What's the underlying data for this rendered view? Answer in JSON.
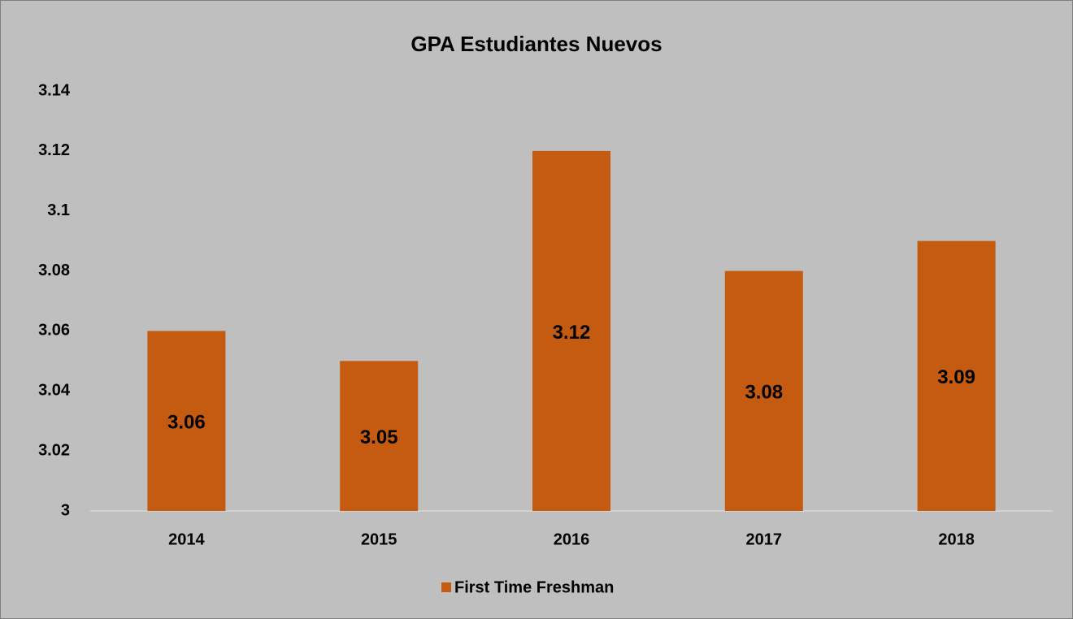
{
  "chart_data": {
    "type": "bar",
    "title": "GPA Estudiantes Nuevos",
    "categories": [
      "2014",
      "2015",
      "2016",
      "2017",
      "2018"
    ],
    "series": [
      {
        "name": "First Time Freshman",
        "color": "#c55a11",
        "values": [
          3.06,
          3.05,
          3.12,
          3.08,
          3.09
        ]
      }
    ],
    "ylim": [
      3,
      3.14
    ],
    "yticks": [
      3,
      3.02,
      3.04,
      3.06,
      3.08,
      3.1,
      3.12,
      3.14
    ],
    "grid": false,
    "legend": "bottom"
  }
}
